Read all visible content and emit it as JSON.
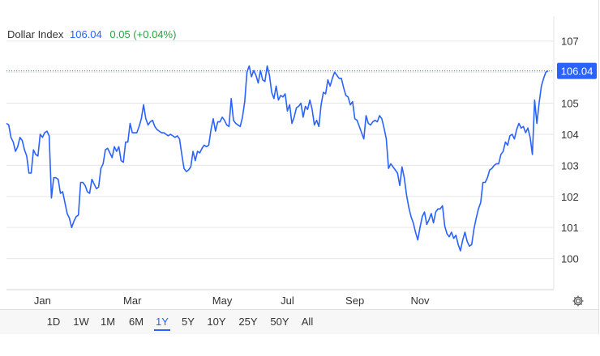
{
  "header": {
    "name": "Dollar Index",
    "value": "106.04",
    "change": "0.05 (+0.04%)"
  },
  "price_tag": "106.04",
  "ranges": [
    {
      "label": "1D",
      "active": false
    },
    {
      "label": "1W",
      "active": false
    },
    {
      "label": "1M",
      "active": false
    },
    {
      "label": "6M",
      "active": false
    },
    {
      "label": "1Y",
      "active": true
    },
    {
      "label": "5Y",
      "active": false
    },
    {
      "label": "10Y",
      "active": false
    },
    {
      "label": "25Y",
      "active": false
    },
    {
      "label": "50Y",
      "active": false
    },
    {
      "label": "All",
      "active": false
    }
  ],
  "settings_icon": "gear-icon",
  "colors": {
    "line": "#2962ff",
    "change": "#26a641",
    "active": "#2962ff"
  },
  "chart_data": {
    "type": "line",
    "title": "",
    "xlabel": "",
    "ylabel": "",
    "y_ticks": [
      100,
      101,
      102,
      103,
      104,
      105,
      106,
      107
    ],
    "ylim": [
      99.0,
      107.8
    ],
    "x_ticks": [
      "Jan",
      "Mar",
      "May",
      "Jul",
      "Sep",
      "Nov"
    ],
    "x_tick_index": [
      16,
      56,
      96,
      125,
      155,
      184
    ],
    "grid": true,
    "series": [
      {
        "name": "",
        "values": [
          104.35,
          104.3,
          103.9,
          103.75,
          103.45,
          103.6,
          103.9,
          103.8,
          103.5,
          103.3,
          102.75,
          102.75,
          103.5,
          103.35,
          103.3,
          104.0,
          103.9,
          104.05,
          104.1,
          103.95,
          101.95,
          102.6,
          102.6,
          102.55,
          102.1,
          102.15,
          101.8,
          101.45,
          101.3,
          101.0,
          101.2,
          101.35,
          101.4,
          102.45,
          102.45,
          102.35,
          102.15,
          102.1,
          102.55,
          102.4,
          102.25,
          102.3,
          102.9,
          103.05,
          103.5,
          103.55,
          103.4,
          103.25,
          103.6,
          103.45,
          103.6,
          103.15,
          103.1,
          103.75,
          103.75,
          104.35,
          104.05,
          104.05,
          104.05,
          104.25,
          104.5,
          104.95,
          104.5,
          104.3,
          104.4,
          104.45,
          104.25,
          104.15,
          104.1,
          104.05,
          104.05,
          104.0,
          103.95,
          104.0,
          103.95,
          103.9,
          103.95,
          103.85,
          103.35,
          102.9,
          102.8,
          102.85,
          102.95,
          103.45,
          103.15,
          103.45,
          103.4,
          103.55,
          103.65,
          103.6,
          103.65,
          104.15,
          104.5,
          104.1,
          104.4,
          104.4,
          104.55,
          104.45,
          104.3,
          104.25,
          105.15,
          104.45,
          104.35,
          104.3,
          104.25,
          104.55,
          105.05,
          106.0,
          106.2,
          105.85,
          106.05,
          105.9,
          105.65,
          106.05,
          105.75,
          105.7,
          106.2,
          105.9,
          105.35,
          105.15,
          105.55,
          105.1,
          105.25,
          105.2,
          105.3,
          104.75,
          104.95,
          104.35,
          104.55,
          104.85,
          104.9,
          105.0,
          104.55,
          104.9,
          104.8,
          105.1,
          104.8,
          104.3,
          104.45,
          104.25,
          104.95,
          105.35,
          105.3,
          105.75,
          105.55,
          105.8,
          106.0,
          105.9,
          105.8,
          105.8,
          105.5,
          105.25,
          105.2,
          104.95,
          105.05,
          104.5,
          104.45,
          104.25,
          104.05,
          103.85,
          104.6,
          104.35,
          104.3,
          104.4,
          104.45,
          104.4,
          104.6,
          104.5,
          104.2,
          103.85,
          102.9,
          103.05,
          102.95,
          102.85,
          102.75,
          102.35,
          102.95,
          102.6,
          102.05,
          101.65,
          101.35,
          101.15,
          100.85,
          100.6,
          101.0,
          101.35,
          101.5,
          101.1,
          101.25,
          101.45,
          101.15,
          101.5,
          101.6,
          101.6,
          101.7,
          101.05,
          100.8,
          100.7,
          100.85,
          100.65,
          100.75,
          100.45,
          100.25,
          100.6,
          100.85,
          100.55,
          100.4,
          100.45,
          100.95,
          101.3,
          101.6,
          101.8,
          102.45,
          102.45,
          102.6,
          102.85,
          102.9,
          103.0,
          103.05,
          103.05,
          103.35,
          103.45,
          103.75,
          103.65,
          103.95,
          104.0,
          103.85,
          104.15,
          104.35,
          104.2,
          104.25,
          104.05,
          104.2,
          103.9,
          103.35,
          105.1,
          104.35,
          105.0,
          105.55,
          105.8,
          106.0,
          106.04
        ]
      }
    ]
  }
}
